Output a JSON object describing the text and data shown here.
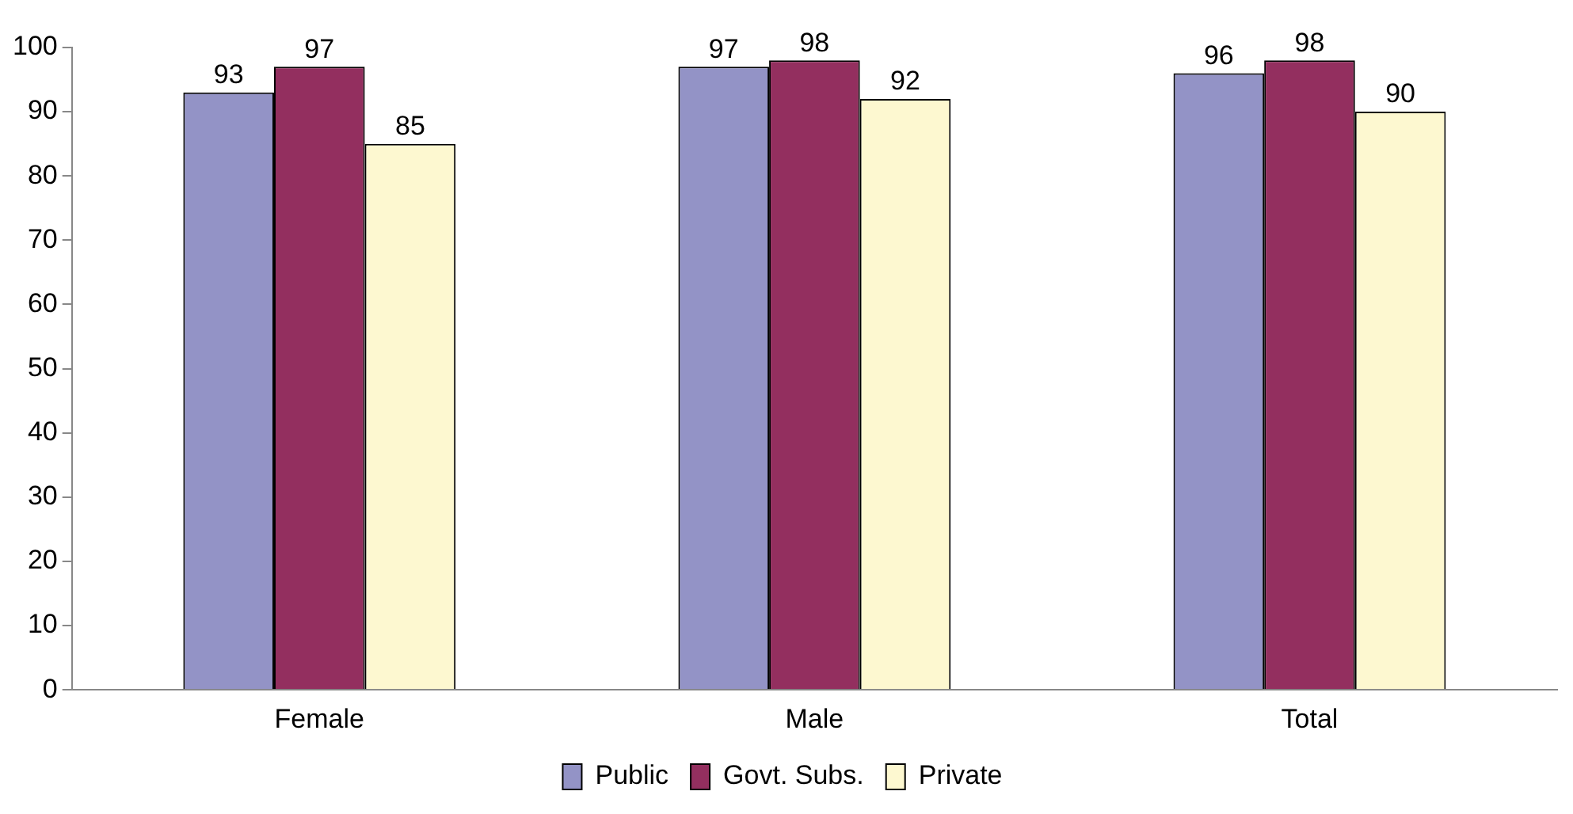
{
  "chart_data": {
    "type": "bar",
    "categories": [
      "Female",
      "Male",
      "Total"
    ],
    "series": [
      {
        "name": "Public",
        "color": "#9393c6",
        "values": [
          93,
          97,
          96
        ]
      },
      {
        "name": "Govt. Subs.",
        "color": "#932f5f",
        "values": [
          97,
          98,
          98
        ]
      },
      {
        "name": "Private",
        "color": "#fdf8d0",
        "values": [
          85,
          92,
          90
        ]
      }
    ],
    "ylim": [
      0,
      100
    ],
    "yticks": [
      0,
      10,
      20,
      30,
      40,
      50,
      60,
      70,
      80,
      90,
      100
    ],
    "grid": false,
    "legend": "bottom",
    "data_labels": true
  }
}
